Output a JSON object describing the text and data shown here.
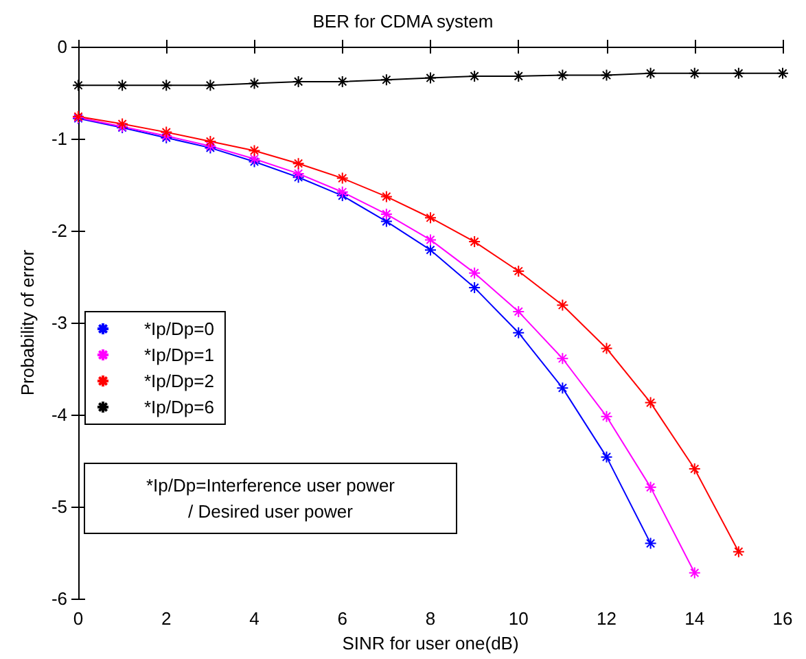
{
  "chart_data": {
    "type": "line",
    "title": "BER for CDMA system",
    "xlabel": "SINR for user one(dB)",
    "ylabel": "Probability of error",
    "x": [
      0,
      1,
      2,
      3,
      4,
      5,
      6,
      7,
      8,
      9,
      10,
      11,
      12,
      13,
      14,
      15,
      16
    ],
    "series": [
      {
        "name": "*Ip/Dp=0",
        "color": "#0000ff",
        "values": [
          -0.78,
          -0.88,
          -0.99,
          -1.1,
          -1.25,
          -1.42,
          -1.62,
          -1.9,
          -2.21,
          -2.62,
          -3.11,
          -3.71,
          -4.46,
          -5.4,
          null,
          null,
          null
        ]
      },
      {
        "name": "*Ip/Dp=1",
        "color": "#ff00ff",
        "values": [
          -0.77,
          -0.87,
          -0.97,
          -1.08,
          -1.22,
          -1.38,
          -1.58,
          -1.82,
          -2.1,
          -2.46,
          -2.88,
          -3.39,
          -4.02,
          -4.79,
          -5.72,
          null,
          null
        ]
      },
      {
        "name": "*Ip/Dp=2",
        "color": "#ff0000",
        "values": [
          -0.76,
          -0.84,
          -0.93,
          -1.03,
          -1.13,
          -1.27,
          -1.43,
          -1.63,
          -1.86,
          -2.12,
          -2.44,
          -2.81,
          -3.28,
          -3.87,
          -4.59,
          -5.49,
          null
        ]
      },
      {
        "name": "*Ip/Dp=6",
        "color": "#000000",
        "values": [
          -0.42,
          -0.42,
          -0.42,
          -0.42,
          -0.4,
          -0.38,
          -0.38,
          -0.36,
          -0.34,
          -0.32,
          -0.32,
          -0.31,
          -0.31,
          -0.29,
          -0.29,
          -0.29,
          -0.29
        ]
      }
    ],
    "xlim": [
      0,
      16
    ],
    "xticks": [
      0,
      2,
      4,
      6,
      8,
      10,
      12,
      14,
      16
    ],
    "ylim": [
      -6,
      0
    ],
    "yticks": [
      -6,
      -5,
      -4,
      -3,
      -2,
      -1,
      0
    ],
    "annotations": [
      "*Ip/Dp=Interference user power\n/ Desired user power"
    ],
    "legend": "left",
    "grid": false,
    "marker": "cross",
    "line_style": "solid"
  }
}
